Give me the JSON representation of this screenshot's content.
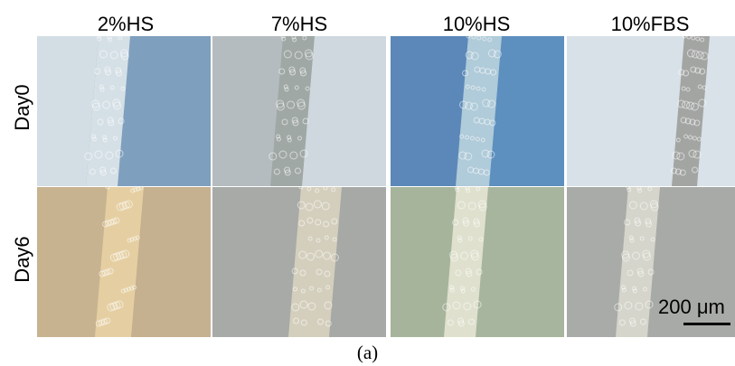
{
  "columns": [
    "2%HS",
    "7%HS",
    "10%HS",
    "10%FBS"
  ],
  "rows": [
    "Day0",
    "Day6"
  ],
  "scale_bar_label": "200 μm",
  "caption": "(a)",
  "tiles": [
    {
      "name": "tile-day0-2hs",
      "bg": "#7f9fbe",
      "band": "#dfe7ea",
      "left": "#d3dde4"
    },
    {
      "name": "tile-day0-7hs",
      "bg": "#cfd8de",
      "band": "#9aa39f",
      "left": "#b5bcc0"
    },
    {
      "name": "tile-day0-10hs",
      "bg": "#5d8fbf",
      "band": "#b9d2db",
      "left": "#5b88b8"
    },
    {
      "name": "tile-day0-10fbs",
      "bg": "#d9e2e8",
      "band": "#9c9f9b",
      "left": "#d8e1e7"
    },
    {
      "name": "tile-day6-2hs",
      "bg": "#c5b08f",
      "band": "#e8d3a4",
      "left": "#c8b391"
    },
    {
      "name": "tile-day6-7hs",
      "bg": "#a7a9a6",
      "band": "#d9d3c0",
      "left": "#a8aaa7"
    },
    {
      "name": "tile-day6-10hs",
      "bg": "#a8b59e",
      "band": "#e4e6d3",
      "left": "#a6b49c"
    },
    {
      "name": "tile-day6-10fbs",
      "bg": "#a7aaa6",
      "band": "#dad9cf",
      "left": "#a8aba7"
    }
  ]
}
